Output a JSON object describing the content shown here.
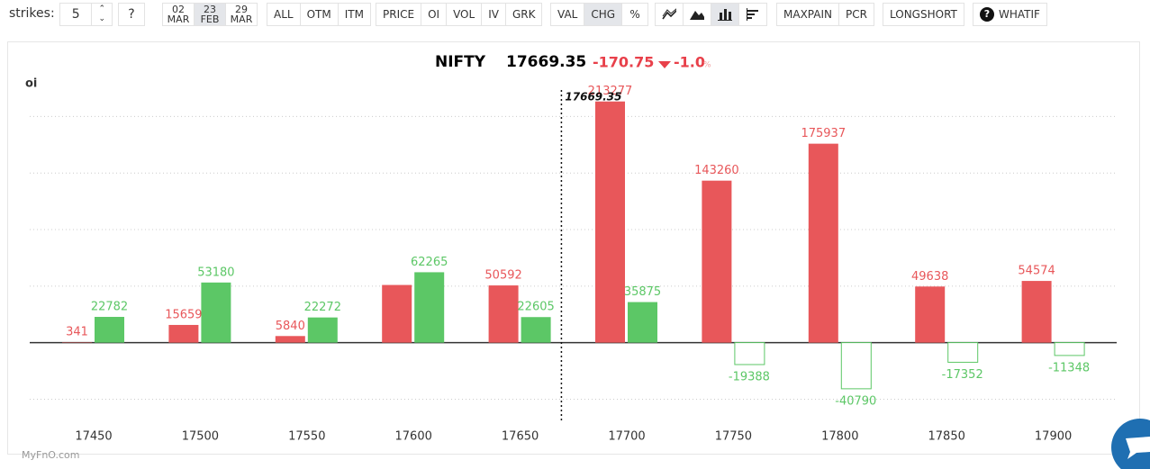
{
  "toolbar": {
    "strikes_label": "strikes:",
    "strikes_value": "5",
    "help": "?",
    "expiries": [
      {
        "day": "02",
        "month": "MAR"
      },
      {
        "day": "23",
        "month": "FEB"
      },
      {
        "day": "29",
        "month": "MAR"
      }
    ],
    "filters": [
      "ALL",
      "OTM",
      "ITM"
    ],
    "metrics": [
      "PRICE",
      "OI",
      "VOL",
      "IV",
      "GRK"
    ],
    "modes": [
      "VAL",
      "CHG",
      "%"
    ],
    "analysis": [
      "MAXPAIN",
      "PCR"
    ],
    "longshort": "LONGSHORT",
    "whatif_icon": "?",
    "whatif": "WHATIF"
  },
  "chart_data": {
    "type": "bar",
    "title": "NIFTY",
    "price": 17669.35,
    "change": -170.75,
    "change_pct": "-1.0",
    "pct_unit": "%",
    "y_label": "oi",
    "categories": [
      17450,
      17500,
      17550,
      17600,
      17650,
      17700,
      17750,
      17800,
      17850,
      17900
    ],
    "series": [
      {
        "color": "#e8575a",
        "values": [
          341,
          15659,
          5840,
          51000,
          50592,
          213277,
          143260,
          175937,
          49638,
          54574
        ],
        "value_labels": [
          "341",
          "15659",
          "5840",
          null,
          "50592",
          "213277",
          "143260",
          "175937",
          "49638",
          "54574"
        ]
      },
      {
        "color": "#5cc766",
        "values": [
          22782,
          53180,
          22272,
          62265,
          22605,
          35875,
          -19388,
          -40790,
          -17352,
          -11348
        ]
      }
    ],
    "ylim": [
      -60000,
      225000
    ],
    "yticks": [
      -50000,
      0,
      50000,
      100000,
      150000,
      200000
    ],
    "grid": true
  },
  "watermark": "MyFnO.com"
}
